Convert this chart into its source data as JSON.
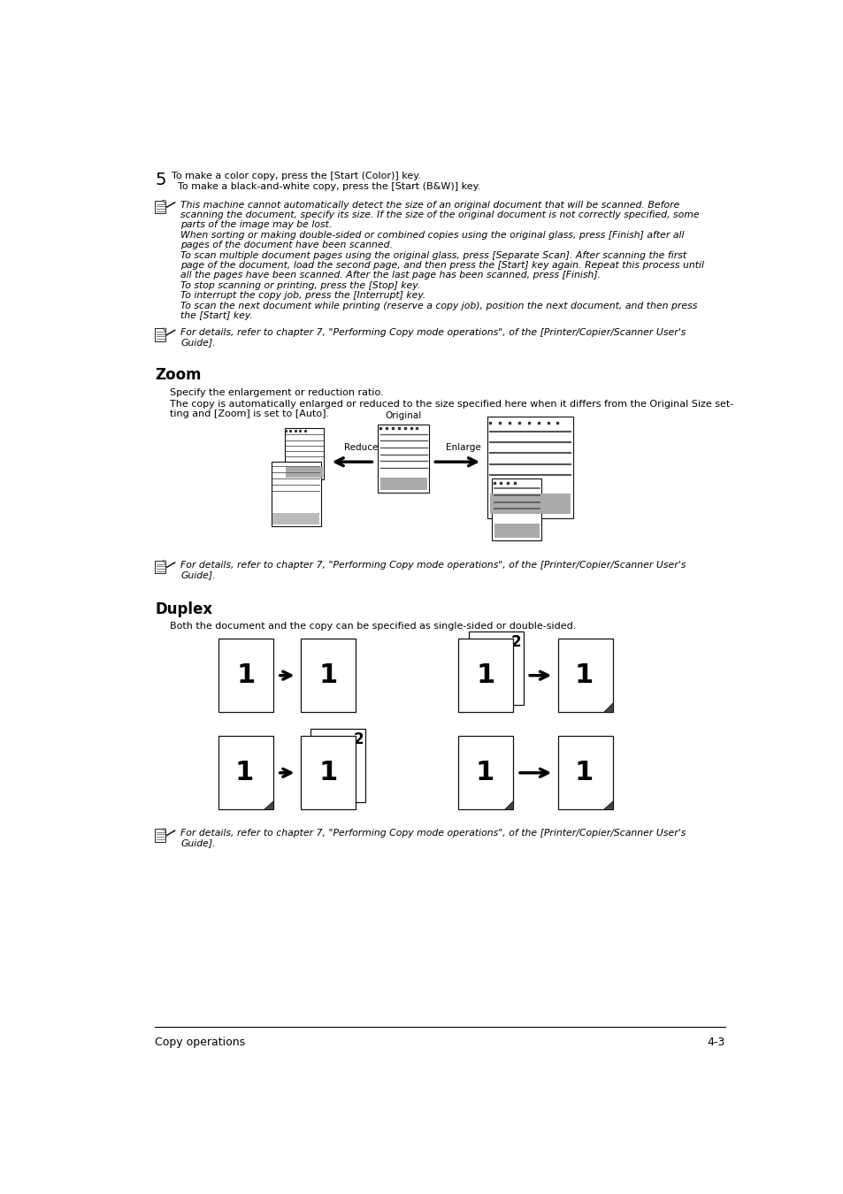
{
  "bg_color": "#ffffff",
  "page_width": 9.54,
  "page_height": 13.5,
  "ml": 0.72,
  "mr": 9.04,
  "step5_line1": "To make a color copy, press the [Start (Color)] key.",
  "step5_line2": "To make a black-and-white copy, press the [Start (B&W)] key.",
  "note1_lines": [
    "This machine cannot automatically detect the size of an original document that will be scanned. Before",
    "scanning the document, specify its size. If the size of the original document is not correctly specified, some",
    "parts of the image may be lost.",
    "When sorting or making double-sided or combined copies using the original glass, press [Finish] after all",
    "pages of the document have been scanned.",
    "To scan multiple document pages using the original glass, press [Separate Scan]. After scanning the first",
    "page of the document, load the second page, and then press the [Start] key again. Repeat this process until",
    "all the pages have been scanned. After the last page has been scanned, press [Finish].",
    "To stop scanning or printing, press the [Stop] key.",
    "To interrupt the copy job, press the [Interrupt] key.",
    "To scan the next document while printing (reserve a copy job), position the next document, and then press",
    "the [Start] key."
  ],
  "note2_lines": [
    "For details, refer to chapter 7, \"Performing Copy mode operations\", of the [Printer/Copier/Scanner User's",
    "Guide]."
  ],
  "zoom_heading": "Zoom",
  "zoom_p1": "Specify the enlargement or reduction ratio.",
  "zoom_p2a": "The copy is automatically enlarged or reduced to the size specified here when it differs from the Original Size set-",
  "zoom_p2b": "ting and [Zoom] is set to [Auto].",
  "zoom_note_lines": [
    "For details, refer to chapter 7, \"Performing Copy mode operations\", of the [Printer/Copier/Scanner User's",
    "Guide]."
  ],
  "duplex_heading": "Duplex",
  "duplex_p1": "Both the document and the copy can be specified as single-sided or double-sided.",
  "duplex_note_lines": [
    "For details, refer to chapter 7, \"Performing Copy mode operations\", of the [Printer/Copier/Scanner User's",
    "Guide]."
  ],
  "footer_left": "Copy operations",
  "footer_right": "4-3"
}
